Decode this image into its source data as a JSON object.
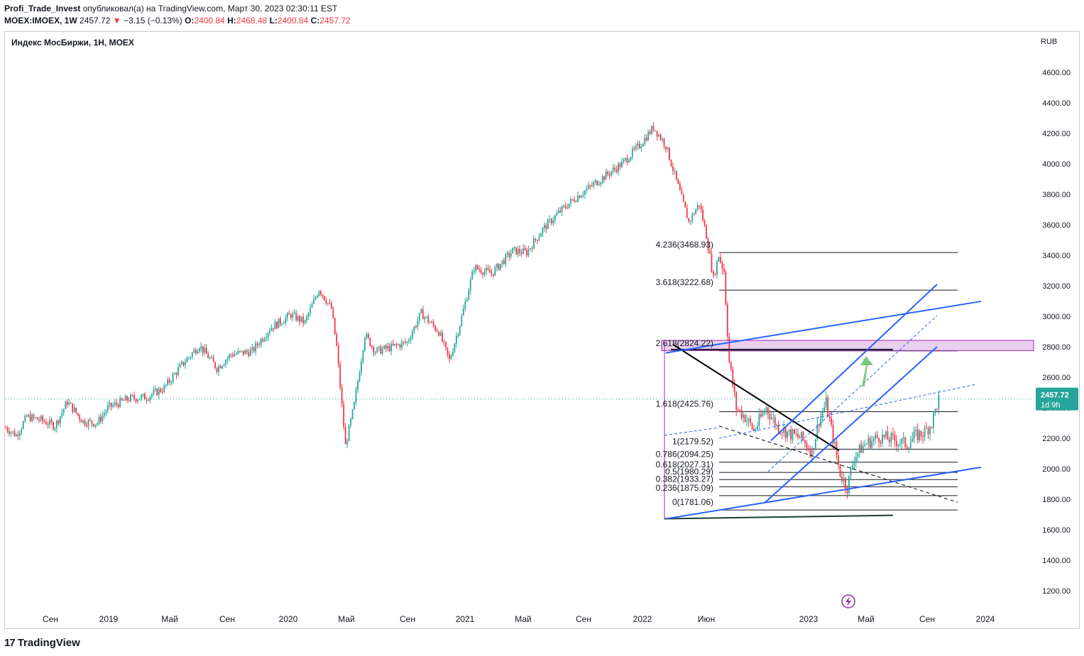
{
  "header": {
    "author": "Profi_Trade_Invest",
    "published": "опубликовал(а) на TradingView.com, Март 30, 2023 02:30:11 EST",
    "symbol": "MOEX:IMOEX, 1W",
    "last": "2457.72",
    "change_arrow": "▼",
    "change": "−3.15 (−0.13%)",
    "open_label": "O:",
    "open": "2400.84",
    "high_label": "H:",
    "high": "2468.48",
    "low_label": "L:",
    "low": "2400.84",
    "close_label": "C:",
    "close": "2457.72"
  },
  "footer": {
    "logo": "TradingView",
    "logo_mark": "17"
  },
  "chart_data": {
    "type": "candlestick",
    "title": "Индекс МосБиржи, 1Н, MOEX",
    "currency": "RUB",
    "ylim": [
      1100,
      4750
    ],
    "y_ticks": [
      "4600.00",
      "4400.00",
      "4200.00",
      "4000.00",
      "3800.00",
      "3600.00",
      "3400.00",
      "3200.00",
      "3000.00",
      "2800.00",
      "2600.00",
      "2400.00",
      "2200.00",
      "2000.00",
      "1800.00",
      "1600.00",
      "1400.00",
      "1200.00"
    ],
    "x_ticks": [
      "Сен",
      "2019",
      "Май",
      "Сен",
      "2020",
      "Май",
      "Сен",
      "2021",
      "Май",
      "Сен",
      "2022",
      "Июн",
      "2023",
      "Май",
      "Сен",
      "2024"
    ],
    "last_price": 2457.72,
    "last_price_label": "2457.72",
    "countdown": "1d 9h",
    "anchors": [
      [
        0,
        2270
      ],
      [
        6,
        2220
      ],
      [
        12,
        2340
      ],
      [
        20,
        2320
      ],
      [
        28,
        2280
      ],
      [
        35,
        2440
      ],
      [
        44,
        2310
      ],
      [
        52,
        2300
      ],
      [
        58,
        2400
      ],
      [
        70,
        2460
      ],
      [
        80,
        2470
      ],
      [
        90,
        2530
      ],
      [
        100,
        2680
      ],
      [
        110,
        2810
      ],
      [
        120,
        2660
      ],
      [
        128,
        2750
      ],
      [
        140,
        2770
      ],
      [
        150,
        2920
      ],
      [
        162,
        3010
      ],
      [
        170,
        2960
      ],
      [
        178,
        3180
      ],
      [
        185,
        3050
      ],
      [
        188,
        2800
      ],
      [
        193,
        2150
      ],
      [
        198,
        2420
      ],
      [
        204,
        2880
      ],
      [
        210,
        2770
      ],
      [
        220,
        2800
      ],
      [
        228,
        2830
      ],
      [
        236,
        3020
      ],
      [
        246,
        2900
      ],
      [
        252,
        2710
      ],
      [
        258,
        2950
      ],
      [
        266,
        3320
      ],
      [
        276,
        3280
      ],
      [
        288,
        3430
      ],
      [
        296,
        3420
      ],
      [
        305,
        3570
      ],
      [
        315,
        3690
      ],
      [
        325,
        3790
      ],
      [
        338,
        3900
      ],
      [
        350,
        4000
      ],
      [
        360,
        4120
      ],
      [
        368,
        4240
      ],
      [
        375,
        4120
      ],
      [
        382,
        3850
      ],
      [
        388,
        3620
      ],
      [
        394,
        3740
      ],
      [
        398,
        3530
      ],
      [
        402,
        3250
      ],
      [
        405,
        3400
      ],
      [
        408,
        3300
      ],
      [
        411,
        2700
      ],
      [
        415,
        2400
      ],
      [
        420,
        2340
      ],
      [
        425,
        2250
      ],
      [
        432,
        2400
      ],
      [
        438,
        2280
      ],
      [
        445,
        2230
      ],
      [
        452,
        2200
      ],
      [
        458,
        2110
      ],
      [
        462,
        2320
      ],
      [
        466,
        2430
      ],
      [
        470,
        2200
      ],
      [
        474,
        1970
      ],
      [
        478,
        1880
      ],
      [
        482,
        2080
      ],
      [
        488,
        2160
      ],
      [
        496,
        2210
      ],
      [
        504,
        2190
      ],
      [
        512,
        2160
      ],
      [
        516,
        2210
      ],
      [
        522,
        2240
      ],
      [
        526,
        2300
      ],
      [
        530,
        2460
      ]
    ],
    "fib_levels": [
      {
        "label": "4.236(3468.93)",
        "value": 3468.93
      },
      {
        "label": "3.618(3222.68)",
        "value": 3222.68
      },
      {
        "label": "2.618(2824.22)",
        "value": 2824.22
      },
      {
        "label": "1.618(2425.76)",
        "value": 2425.76
      },
      {
        "label": "1(2179.52)",
        "value": 2179.52
      },
      {
        "label": "0.786(2094.25)",
        "value": 2094.25
      },
      {
        "label": "0.618(2027.31)",
        "value": 2027.31
      },
      {
        "label": "0.5(1980.29)",
        "value": 1980.29
      },
      {
        "label": "0.382(1933.27)",
        "value": 1933.27
      },
      {
        "label": "0.236(1875.09)",
        "value": 1875.09
      },
      {
        "label": "0(1781.06)",
        "value": 1781.06
      }
    ],
    "resistance_zone": [
      2775,
      2842
    ],
    "colors": {
      "up": "#26a69a",
      "down": "#f23645",
      "trend": "#2962ff",
      "label_bg": "#26a69a",
      "zone": "#9c27b0",
      "arrow": "#66bb6a"
    }
  }
}
